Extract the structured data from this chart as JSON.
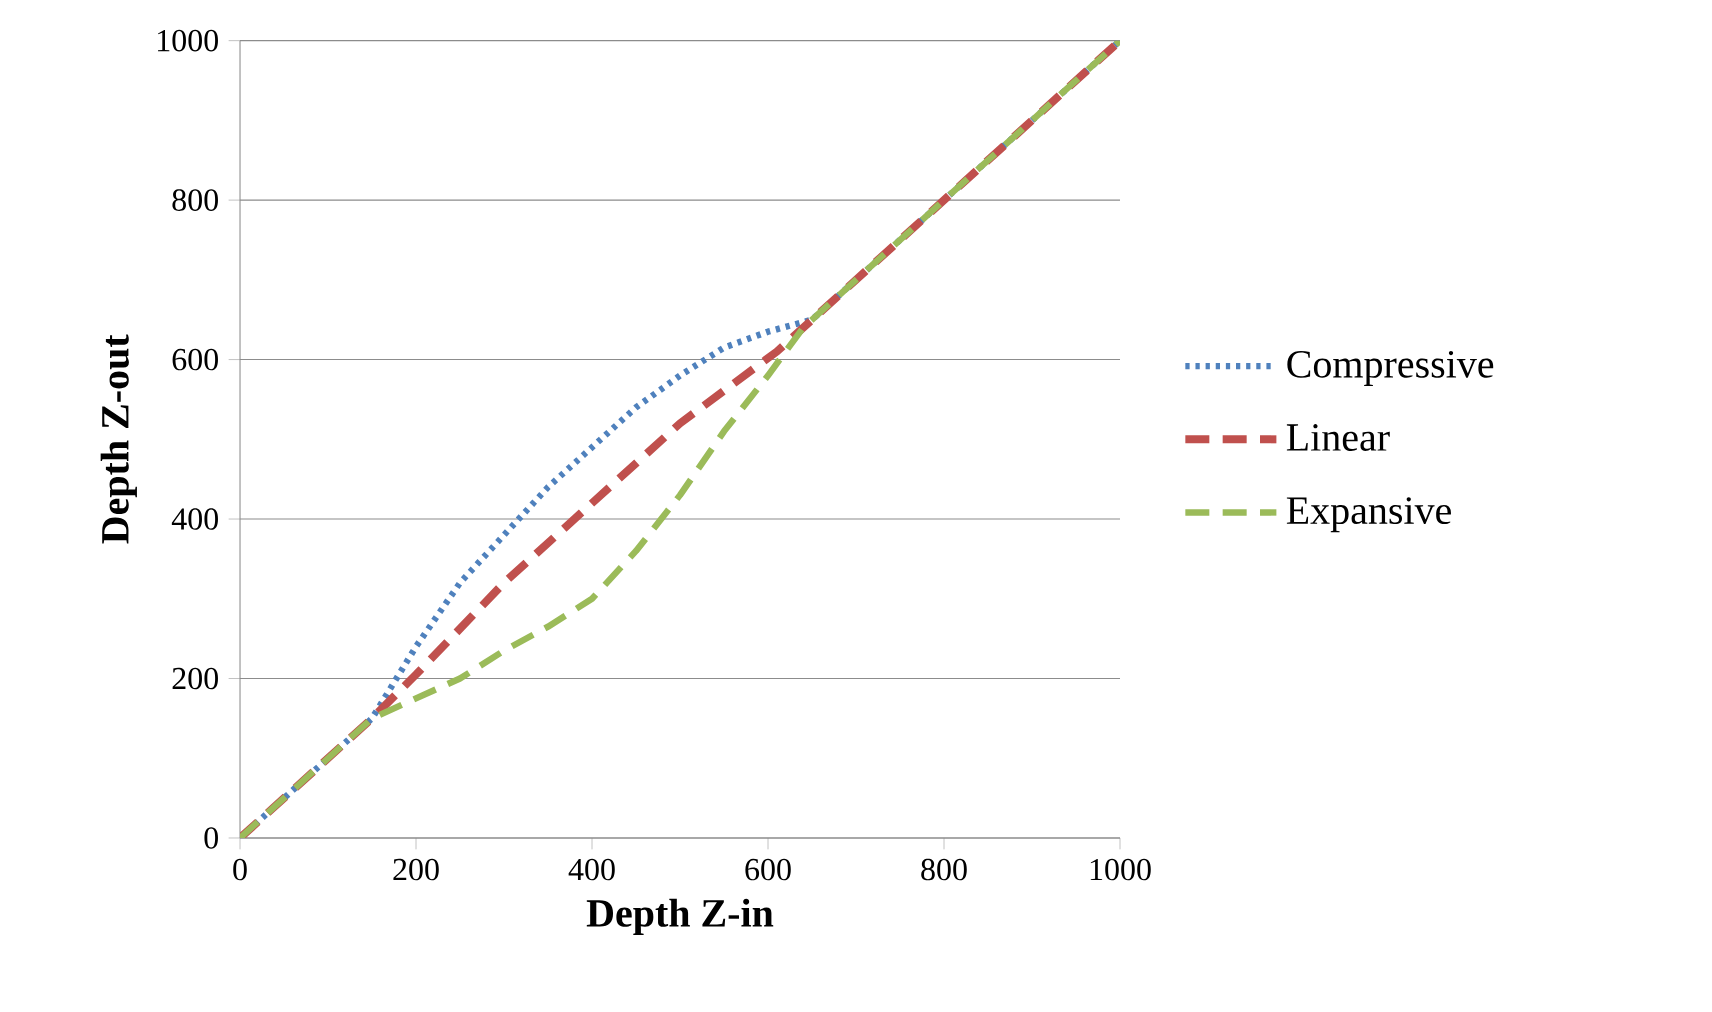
{
  "chart_data": {
    "type": "line",
    "xlabel": "Depth Z-in",
    "ylabel": "Depth Z-out",
    "xlim": [
      0,
      1000
    ],
    "ylim": [
      0,
      1000
    ],
    "xticks": [
      0,
      200,
      400,
      600,
      800,
      1000
    ],
    "yticks": [
      0,
      200,
      400,
      600,
      800,
      1000
    ],
    "grid": "y",
    "legend": "right",
    "marker": "none",
    "series": [
      {
        "name": "Compressive",
        "color": "#4f81bd",
        "line_style": "dotted",
        "x": [
          0,
          150,
          200,
          250,
          300,
          350,
          400,
          450,
          500,
          550,
          600,
          650,
          1000
        ],
        "values": [
          0,
          150,
          240,
          320,
          380,
          440,
          490,
          540,
          580,
          615,
          635,
          650,
          1000
        ]
      },
      {
        "name": "Linear",
        "color": "#c0504d",
        "line_style": "dashed",
        "x": [
          0,
          150,
          200,
          300,
          400,
          500,
          610,
          1000
        ],
        "values": [
          0,
          150,
          205,
          320,
          420,
          520,
          610,
          1000
        ]
      },
      {
        "name": "Expansive",
        "color": "#9bbb59",
        "line_style": "dashed",
        "x": [
          0,
          150,
          200,
          250,
          300,
          350,
          400,
          450,
          500,
          550,
          600,
          640,
          1000
        ],
        "values": [
          0,
          150,
          175,
          200,
          235,
          265,
          300,
          360,
          430,
          510,
          580,
          640,
          1000
        ]
      }
    ]
  }
}
